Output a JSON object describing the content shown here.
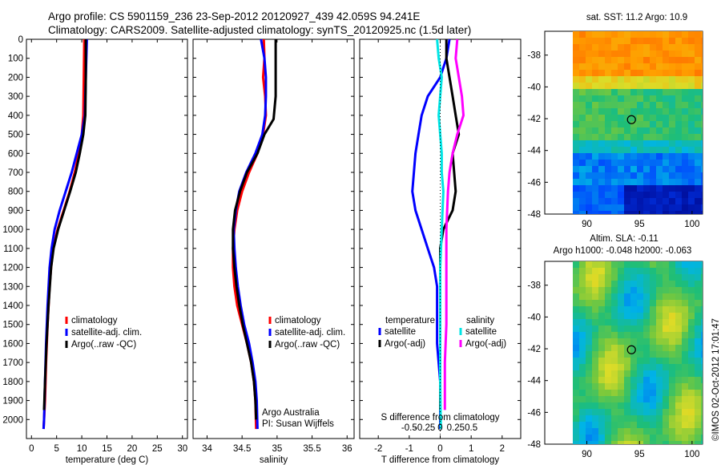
{
  "titles": {
    "line1": "Argo profile: CS 5901159_236 23-Sep-2012 20120927_439 42.059S 94.241E",
    "line2": "Climatology: CARS2009. Satellite-adjusted climatology: synTS_20120925.nc (1.5d later)"
  },
  "credit": "©IMOS 02-Oct-2012 17:01:47",
  "colors": {
    "climatology": "#ff0000",
    "satellite": "#0000ff",
    "argo": "#000000",
    "cyan": "#00e5e5",
    "magenta": "#ff00ff"
  },
  "chart_data": [
    {
      "type": "line",
      "xlabel": "temperature (deg C)",
      "ylabel": "",
      "xlim": [
        -1,
        31
      ],
      "ylim": [
        2100,
        0
      ],
      "xticks": [
        0,
        5,
        10,
        15,
        20,
        25,
        30
      ],
      "xtick_labels": [
        "0",
        "5",
        "10",
        "15",
        "20",
        "25",
        "30"
      ],
      "yticks": [
        0,
        100,
        200,
        300,
        400,
        500,
        600,
        700,
        800,
        900,
        1000,
        1100,
        1200,
        1300,
        1400,
        1500,
        1600,
        1700,
        1800,
        1900,
        2000
      ],
      "ytick_labels": [
        "0",
        "100",
        "200",
        "300",
        "400",
        "500",
        "600",
        "700",
        "800",
        "900",
        "1000",
        "1100",
        "1200",
        "1300",
        "1400",
        "1500",
        "1600",
        "1700",
        "1800",
        "1900",
        "2000"
      ],
      "legend": [
        "climatology",
        "satellite-adj. clim.",
        "Argo(..raw -QC)"
      ],
      "legend_position": "lower-center",
      "series": [
        {
          "name": "climatology",
          "color": "#ff0000",
          "x": [
            10.5,
            10.4,
            10.3,
            10.0,
            9.4,
            8.6,
            7.6,
            6.4,
            5.2,
            4.3,
            3.9,
            3.6,
            3.2,
            2.9,
            2.7,
            2.5,
            2.4
          ],
          "y": [
            0,
            200,
            400,
            500,
            600,
            700,
            800,
            900,
            1000,
            1100,
            1200,
            1300,
            1500,
            1700,
            1900,
            2000,
            2050
          ]
        },
        {
          "name": "satellite-adj. clim.",
          "color": "#0000ff",
          "x": [
            11.0,
            10.8,
            10.6,
            10.0,
            9.0,
            8.0,
            6.8,
            5.6,
            4.6,
            4.0,
            3.6,
            3.2,
            2.9,
            2.7,
            2.5,
            2.4
          ],
          "y": [
            0,
            200,
            400,
            500,
            600,
            700,
            800,
            900,
            1000,
            1100,
            1200,
            1400,
            1600,
            1800,
            2000,
            2050
          ]
        },
        {
          "name": "Argo(..raw -QC)",
          "color": "#000000",
          "x": [
            10.8,
            10.8,
            10.7,
            10.3,
            9.6,
            8.8,
            7.7,
            6.5,
            5.3,
            4.4,
            3.9,
            3.4,
            3.0,
            2.7,
            2.5
          ],
          "y": [
            0,
            200,
            400,
            500,
            600,
            700,
            800,
            900,
            1000,
            1100,
            1200,
            1400,
            1600,
            1800,
            1950
          ]
        }
      ]
    },
    {
      "type": "line",
      "xlabel": "salinity",
      "ylabel": "",
      "xlim": [
        33.8,
        36.1
      ],
      "ylim": [
        2100,
        0
      ],
      "xticks": [
        34,
        34.5,
        35,
        35.5,
        36
      ],
      "xtick_labels": [
        "34",
        "34.5",
        "35",
        "35.5",
        "36"
      ],
      "legend": [
        "climatology",
        "satellite-adj. clim.",
        "Argo(..raw -QC)"
      ],
      "legend_position": "lower-right",
      "annotation": [
        "Argo Australia",
        "PI: Susan Wijffels"
      ],
      "series": [
        {
          "name": "climatology",
          "color": "#ff0000",
          "x": [
            34.81,
            34.82,
            34.8,
            34.83,
            34.84,
            34.8,
            34.72,
            34.6,
            34.5,
            34.43,
            34.39,
            34.37,
            34.37,
            34.39,
            34.43,
            34.5,
            34.57,
            34.63,
            34.67,
            34.69,
            34.7
          ],
          "y": [
            0,
            100,
            200,
            300,
            400,
            500,
            600,
            700,
            800,
            900,
            1000,
            1100,
            1200,
            1300,
            1400,
            1500,
            1600,
            1700,
            1800,
            1900,
            2050
          ]
        },
        {
          "name": "satellite-adj. clim.",
          "color": "#0000ff",
          "x": [
            34.77,
            34.82,
            34.84,
            34.84,
            34.83,
            34.79,
            34.69,
            34.56,
            34.46,
            34.41,
            34.38,
            34.39,
            34.41,
            34.44,
            34.48,
            34.53,
            34.6,
            34.65,
            34.69,
            34.71,
            34.72
          ],
          "y": [
            0,
            100,
            200,
            300,
            400,
            500,
            600,
            700,
            800,
            900,
            1000,
            1100,
            1200,
            1300,
            1400,
            1500,
            1600,
            1700,
            1800,
            1900,
            2050
          ]
        },
        {
          "name": "Argo(..raw -QC)",
          "color": "#000000",
          "x": [
            34.98,
            34.98,
            34.98,
            34.98,
            34.95,
            34.82,
            34.72,
            34.57,
            34.47,
            34.4,
            34.37,
            34.37,
            34.39,
            34.42,
            34.46,
            34.51,
            34.57,
            34.63,
            34.67,
            34.69,
            34.7
          ],
          "y": [
            0,
            100,
            200,
            300,
            420,
            500,
            600,
            700,
            800,
            900,
            1000,
            1100,
            1200,
            1300,
            1400,
            1500,
            1600,
            1700,
            1800,
            1900,
            2000
          ]
        }
      ]
    },
    {
      "type": "line",
      "xlabel": "T difference from climatology",
      "xlabel2": "S difference from climatology",
      "ylabel": "",
      "xlim": [
        -2.6,
        2.6
      ],
      "ylim": [
        2100,
        0
      ],
      "xticks": [
        -2,
        -1,
        0,
        1,
        2
      ],
      "xtick_labels": [
        "-2",
        "-1",
        "0",
        "1",
        "2"
      ],
      "xticks2": [
        -1,
        -0.5,
        0,
        0.5,
        1
      ],
      "xtick_labels2": [
        "-0.5",
        "-0.25",
        "0",
        "0.25",
        "0.5"
      ],
      "legend_groups": [
        {
          "title": "temperature",
          "entries": [
            "satellite",
            "Argo(-adj)"
          ]
        },
        {
          "title": "salinity",
          "entries": [
            "satellite",
            "Argo(-adj)"
          ]
        }
      ],
      "series": [
        {
          "name": "temperature satellite",
          "color": "#0000ff",
          "x": [
            0.3,
            0.2,
            0.0,
            -0.4,
            -0.6,
            -0.7,
            -0.8,
            -0.9,
            -0.8,
            -0.6,
            -0.4,
            -0.2,
            -0.1,
            -0.1,
            -0.1,
            0.0,
            0.0
          ],
          "y": [
            0,
            100,
            200,
            300,
            400,
            500,
            600,
            800,
            900,
            1000,
            1100,
            1200,
            1300,
            1400,
            1600,
            1800,
            2050
          ]
        },
        {
          "name": "temperature Argo(-adj)",
          "color": "#000000",
          "x": [
            0.2,
            0.2,
            0.3,
            0.4,
            0.5,
            0.6,
            0.4,
            0.45,
            0.5,
            0.4,
            0.1,
            0.0,
            0.0,
            0.0,
            0.0
          ],
          "y": [
            0,
            100,
            200,
            300,
            400,
            500,
            600,
            700,
            800,
            900,
            1000,
            1100,
            1200,
            1500,
            1950
          ]
        },
        {
          "name": "salinity satellite",
          "color": "#00e5e5",
          "x": [
            -0.1,
            -0.05,
            0.05,
            0.0,
            -0.05,
            0.0,
            0.05,
            0.05,
            0.1,
            0.05,
            0.0,
            0.0,
            0.0,
            0.02
          ],
          "y": [
            0,
            100,
            200,
            300,
            400,
            500,
            600,
            700,
            800,
            1000,
            1200,
            1500,
            1800,
            2050
          ]
        },
        {
          "name": "salinity Argo(-adj)",
          "color": "#ff00ff",
          "x": [
            0.55,
            0.5,
            0.6,
            0.7,
            0.75,
            0.55,
            0.4,
            0.3,
            0.25,
            0.2,
            0.2,
            0.2,
            0.15,
            0.15,
            0.15
          ],
          "y": [
            0,
            100,
            200,
            300,
            400,
            500,
            600,
            700,
            800,
            1000,
            1200,
            1500,
            1700,
            1800,
            1950
          ]
        }
      ]
    },
    {
      "type": "heatmap",
      "title": "sat. SST: 11.2  Argo: 10.9",
      "xlim": [
        86,
        101
      ],
      "ylim": [
        -48,
        -36.5
      ],
      "xticks": [
        90,
        95,
        100
      ],
      "xtick_labels": [
        "90",
        "95",
        "100"
      ],
      "yticks": [
        -38,
        -40,
        -42,
        -44,
        -46,
        -48
      ],
      "ytick_labels": [
        "-38",
        "-40",
        "-42",
        "-44",
        "-46",
        "-48"
      ],
      "marker": {
        "lon": 94.24,
        "lat": -42.06
      }
    },
    {
      "type": "heatmap",
      "title": "Altim. SLA: -0.11",
      "subtitle": "Argo h1000: -0.048  h2000: -0.063",
      "xlim": [
        86,
        101
      ],
      "ylim": [
        -48,
        -36.5
      ],
      "xticks": [
        90,
        95,
        100
      ],
      "xtick_labels": [
        "90",
        "95",
        "100"
      ],
      "yticks": [
        -38,
        -40,
        -42,
        -44,
        -46,
        -48
      ],
      "ytick_labels": [
        "-38",
        "-40",
        "-42",
        "-44",
        "-46",
        "-48"
      ],
      "marker": {
        "lon": 94.24,
        "lat": -42.06
      }
    }
  ]
}
